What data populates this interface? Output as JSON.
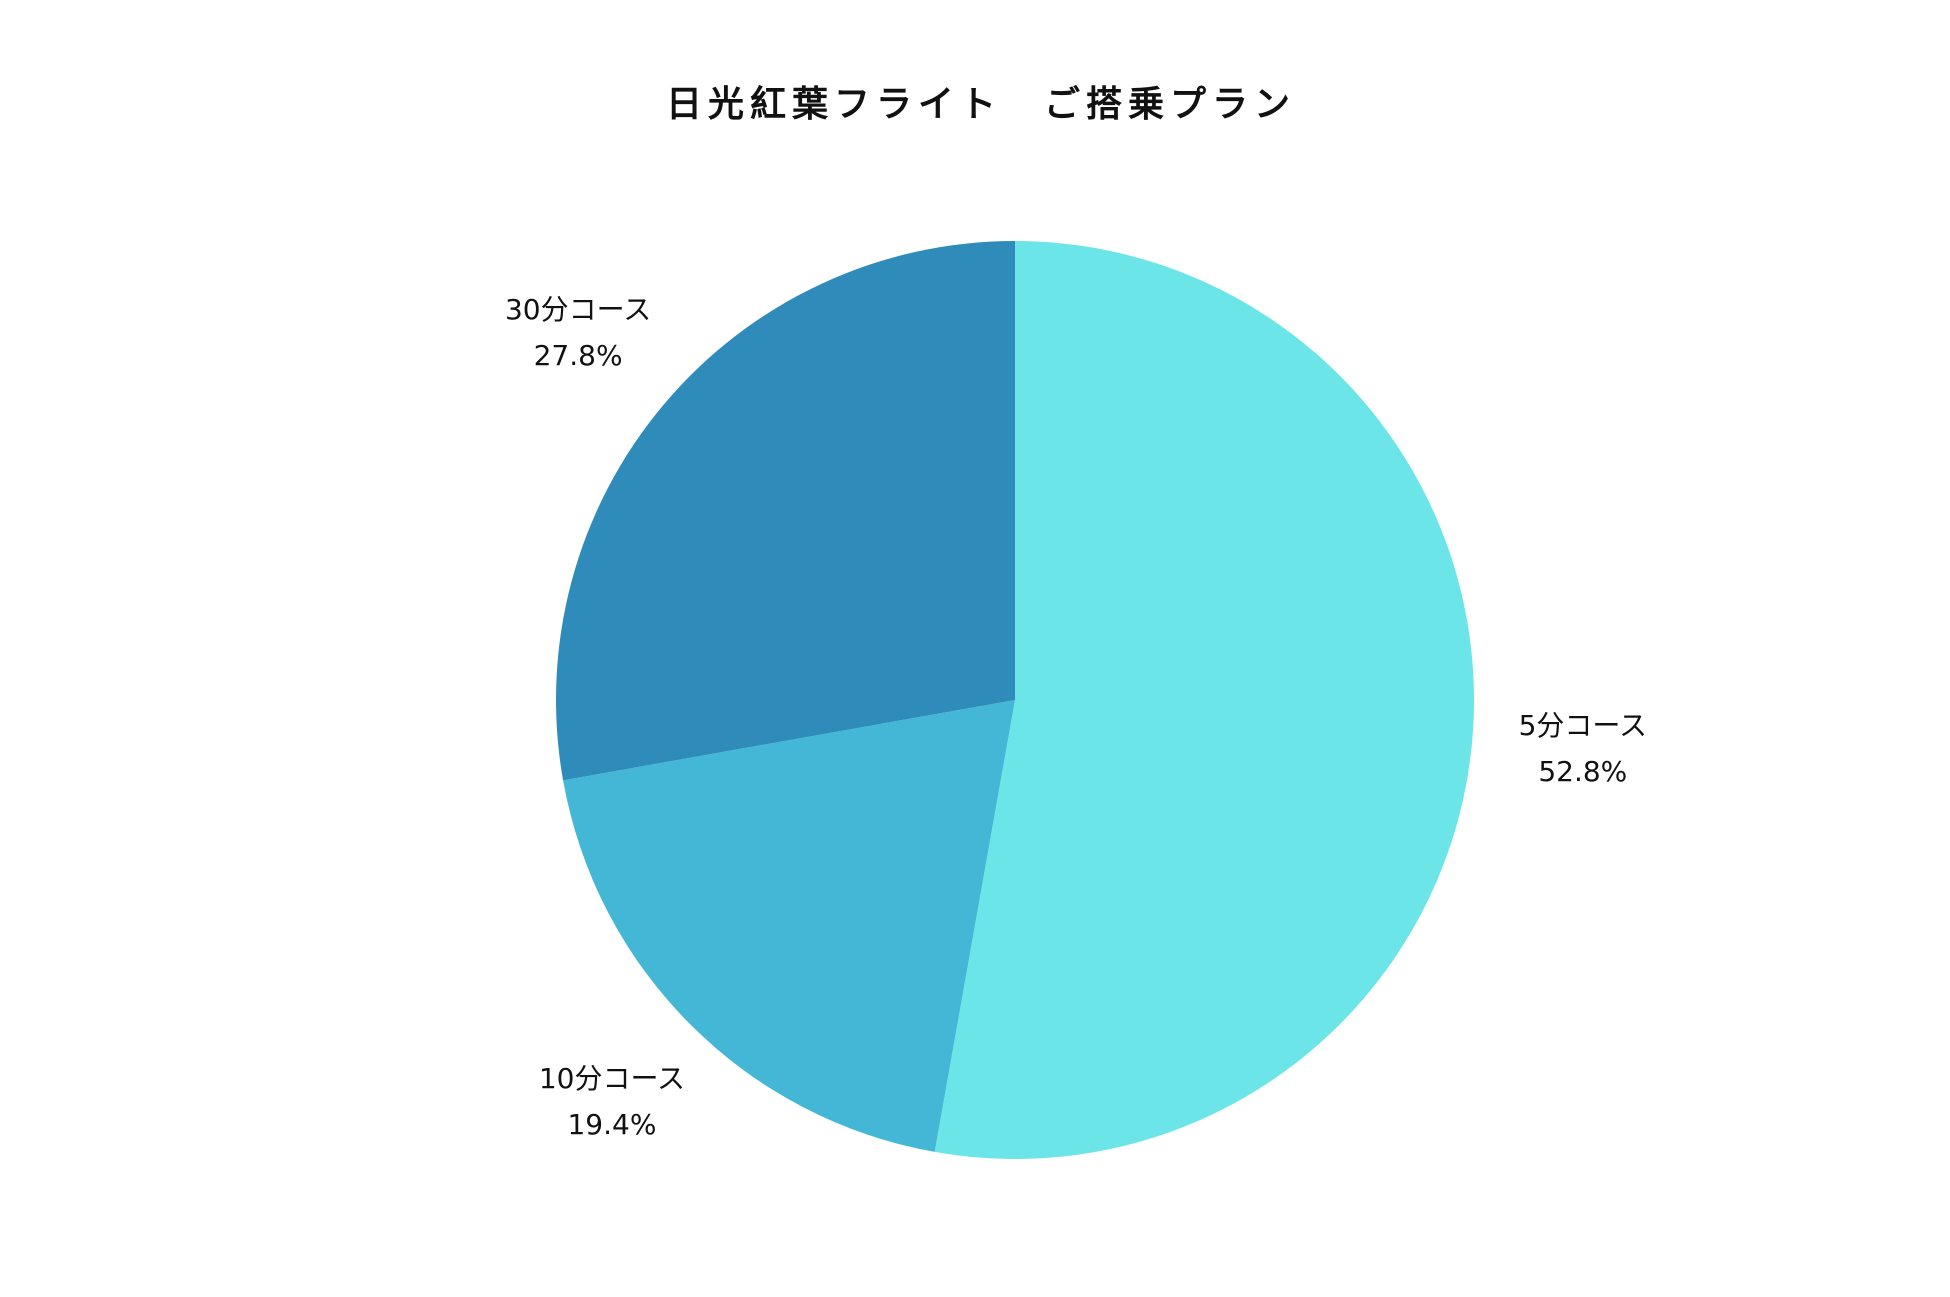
{
  "chart_data": {
    "type": "pie",
    "title": "日光紅葉フライト　ご搭乗プラン",
    "categories": [
      "5分コース",
      "10分コース",
      "30分コース"
    ],
    "values": [
      52.8,
      19.4,
      27.8
    ],
    "value_labels": [
      "52.8%",
      "19.4%",
      "27.8%"
    ],
    "colors": [
      "#6ce5e8",
      "#43b7d5",
      "#2e8bba"
    ]
  }
}
